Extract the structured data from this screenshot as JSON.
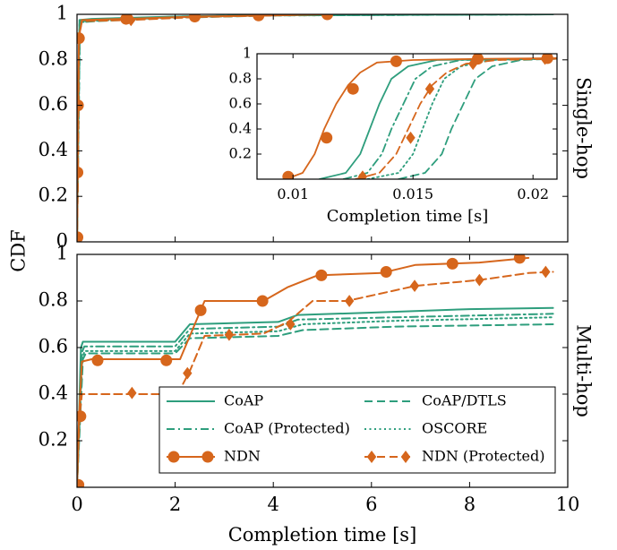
{
  "chart_data": {
    "type": "line",
    "ylabel": "CDF",
    "xlabel": "Completion time [s]",
    "colors": {
      "coap": "#2e9e7d",
      "ndn": "#d6661c"
    },
    "series": [
      {
        "name": "CoAP",
        "color": "#2e9e7d",
        "dash": "solid",
        "marker": "none"
      },
      {
        "name": "CoAP/DTLS",
        "color": "#2e9e7d",
        "dash": "dashed",
        "marker": "none"
      },
      {
        "name": "CoAP (Protected)",
        "color": "#2e9e7d",
        "dash": "dashdot",
        "marker": "none"
      },
      {
        "name": "OSCORE",
        "color": "#2e9e7d",
        "dash": "dotted",
        "marker": "none"
      },
      {
        "name": "NDN",
        "color": "#d6661c",
        "dash": "solid",
        "marker": "circle"
      },
      {
        "name": "NDN (Protected)",
        "color": "#d6661c",
        "dash": "dashed",
        "marker": "diamond"
      }
    ],
    "panels": [
      {
        "label": "Single-hop",
        "xlim": [
          0,
          10
        ],
        "ylim": [
          0,
          1
        ],
        "yticks": [
          "0",
          "0.2",
          "0.4",
          "0.6",
          "0.8",
          "1"
        ],
        "lines": {
          "CoAP": [
            [
              0,
              0
            ],
            [
              0.05,
              0.975
            ],
            [
              0.3,
              0.98
            ],
            [
              2,
              0.99
            ],
            [
              4,
              0.997
            ],
            [
              9.7,
              1
            ]
          ],
          "CoAP/DTLS": [
            [
              0,
              0
            ],
            [
              0.06,
              0.965
            ],
            [
              0.4,
              0.97
            ],
            [
              2,
              0.985
            ],
            [
              4,
              0.995
            ],
            [
              9.7,
              1
            ]
          ],
          "CoAP (Protected)": [
            [
              0,
              0
            ],
            [
              0.05,
              0.97
            ],
            [
              0.3,
              0.975
            ],
            [
              2,
              0.99
            ],
            [
              4,
              0.996
            ],
            [
              9.7,
              1
            ]
          ],
          "OSCORE": [
            [
              0,
              0
            ],
            [
              0.06,
              0.965
            ],
            [
              0.4,
              0.972
            ],
            [
              2,
              0.987
            ],
            [
              4,
              0.995
            ],
            [
              9.7,
              1
            ]
          ],
          "NDN": [
            [
              0,
              0
            ],
            [
              0.01,
              0.3
            ],
            [
              0.02,
              0.6
            ],
            [
              0.04,
              0.9
            ],
            [
              0.1,
              0.975
            ],
            [
              1,
              0.98
            ],
            [
              2.4,
              0.99
            ],
            [
              4,
              0.995
            ],
            [
              5,
              1
            ]
          ],
          "NDN (Protected)": [
            [
              0,
              0
            ],
            [
              0.02,
              0.3
            ],
            [
              0.04,
              0.9
            ],
            [
              0.1,
              0.97
            ],
            [
              1.1,
              0.975
            ],
            [
              2.4,
              0.988
            ],
            [
              5,
              1
            ]
          ]
        },
        "markers": {
          "NDN": [
            [
              0.01,
              0.02
            ],
            [
              0.01,
              0.305
            ],
            [
              0.02,
              0.6
            ],
            [
              0.04,
              0.895
            ],
            [
              1,
              0.98
            ],
            [
              2.4,
              0.99
            ],
            [
              3.7,
              0.995
            ],
            [
              5.1,
              1
            ]
          ],
          "NDN (Protected)": [
            [
              1.1,
              0.975
            ]
          ]
        },
        "inset": {
          "xlabel": "Completion time [s]",
          "xlim": [
            0.0085,
            0.021
          ],
          "ylim": [
            0,
            1
          ],
          "xticks": [
            "0.01",
            "0.015",
            "0.02"
          ],
          "yticks": [
            "0.2",
            "0.4",
            "0.6",
            "0.8",
            "1"
          ],
          "lines": {
            "CoAP": [
              [
                0.0111,
                0
              ],
              [
                0.0122,
                0.05
              ],
              [
                0.0128,
                0.2
              ],
              [
                0.0132,
                0.4
              ],
              [
                0.0136,
                0.6
              ],
              [
                0.0141,
                0.8
              ],
              [
                0.0148,
                0.9
              ],
              [
                0.016,
                0.95
              ],
              [
                0.021,
                0.96
              ]
            ],
            "CoAP (Protected)": [
              [
                0.0121,
                0
              ],
              [
                0.0131,
                0.05
              ],
              [
                0.0137,
                0.2
              ],
              [
                0.0141,
                0.4
              ],
              [
                0.0146,
                0.6
              ],
              [
                0.0151,
                0.8
              ],
              [
                0.0158,
                0.9
              ],
              [
                0.017,
                0.95
              ],
              [
                0.021,
                0.96
              ]
            ],
            "OSCORE": [
              [
                0.0131,
                0
              ],
              [
                0.0144,
                0.05
              ],
              [
                0.015,
                0.2
              ],
              [
                0.0154,
                0.4
              ],
              [
                0.0158,
                0.6
              ],
              [
                0.0163,
                0.8
              ],
              [
                0.017,
                0.9
              ],
              [
                0.0183,
                0.95
              ],
              [
                0.021,
                0.96
              ]
            ],
            "CoAP/DTLS": [
              [
                0.0144,
                0
              ],
              [
                0.0155,
                0.05
              ],
              [
                0.0162,
                0.2
              ],
              [
                0.0166,
                0.4
              ],
              [
                0.0171,
                0.6
              ],
              [
                0.0176,
                0.8
              ],
              [
                0.0183,
                0.9
              ],
              [
                0.0195,
                0.95
              ],
              [
                0.021,
                0.96
              ]
            ],
            "NDN": [
              [
                0.0097,
                0
              ],
              [
                0.0104,
                0.05
              ],
              [
                0.0109,
                0.2
              ],
              [
                0.0113,
                0.4
              ],
              [
                0.0118,
                0.6
              ],
              [
                0.0123,
                0.75
              ],
              [
                0.0128,
                0.85
              ],
              [
                0.0135,
                0.93
              ],
              [
                0.015,
                0.95
              ],
              [
                0.018,
                0.96
              ],
              [
                0.021,
                0.965
              ]
            ],
            "NDN (Protected)": [
              [
                0.0126,
                0
              ],
              [
                0.0136,
                0.05
              ],
              [
                0.0143,
                0.2
              ],
              [
                0.0148,
                0.4
              ],
              [
                0.0153,
                0.6
              ],
              [
                0.0158,
                0.75
              ],
              [
                0.0164,
                0.85
              ],
              [
                0.0172,
                0.92
              ],
              [
                0.0185,
                0.95
              ],
              [
                0.021,
                0.96
              ]
            ]
          },
          "markers": {
            "NDN": [
              [
                0.0098,
                0.02
              ],
              [
                0.0114,
                0.33
              ],
              [
                0.0125,
                0.72
              ],
              [
                0.0143,
                0.94
              ],
              [
                0.0177,
                0.96
              ],
              [
                0.0206,
                0.965
              ]
            ],
            "NDN (Protected)": [
              [
                0.0129,
                0.02
              ],
              [
                0.0149,
                0.33
              ],
              [
                0.0157,
                0.72
              ],
              [
                0.0175,
                0.92
              ],
              [
                0.0205,
                0.96
              ]
            ]
          }
        }
      },
      {
        "label": "Multi-hop",
        "xlim": [
          0,
          10
        ],
        "ylim": [
          0,
          1
        ],
        "xticks": [
          "0",
          "2",
          "4",
          "6",
          "8",
          "10"
        ],
        "yticks": [
          "0.2",
          "0.4",
          "0.6",
          "0.8",
          "1"
        ],
        "lines": {
          "CoAP": [
            [
              0,
              0
            ],
            [
              0.08,
              0.6
            ],
            [
              0.12,
              0.625
            ],
            [
              2,
              0.625
            ],
            [
              2.3,
              0.7
            ],
            [
              4.1,
              0.71
            ],
            [
              4.5,
              0.74
            ],
            [
              6,
              0.75
            ],
            [
              8,
              0.765
            ],
            [
              9.7,
              0.77
            ]
          ],
          "CoAP/DTLS": [
            [
              0,
              0
            ],
            [
              0.12,
              0.55
            ],
            [
              0.18,
              0.575
            ],
            [
              2,
              0.575
            ],
            [
              2.3,
              0.64
            ],
            [
              4.1,
              0.65
            ],
            [
              4.6,
              0.675
            ],
            [
              6.5,
              0.69
            ],
            [
              9.7,
              0.7
            ]
          ],
          "CoAP (Protected)": [
            [
              0,
              0
            ],
            [
              0.1,
              0.58
            ],
            [
              0.15,
              0.605
            ],
            [
              2,
              0.605
            ],
            [
              2.3,
              0.68
            ],
            [
              4.1,
              0.69
            ],
            [
              4.5,
              0.72
            ],
            [
              6.5,
              0.73
            ],
            [
              9.7,
              0.745
            ]
          ],
          "OSCORE": [
            [
              0,
              0
            ],
            [
              0.11,
              0.56
            ],
            [
              0.16,
              0.585
            ],
            [
              2,
              0.585
            ],
            [
              2.3,
              0.66
            ],
            [
              4.1,
              0.67
            ],
            [
              4.6,
              0.7
            ],
            [
              6.5,
              0.715
            ],
            [
              9.7,
              0.73
            ]
          ],
          "NDN": [
            [
              0,
              0
            ],
            [
              0.04,
              0.3
            ],
            [
              0.1,
              0.54
            ],
            [
              0.3,
              0.55
            ],
            [
              2.1,
              0.55
            ],
            [
              2.6,
              0.8
            ],
            [
              3.8,
              0.8
            ],
            [
              4.3,
              0.86
            ],
            [
              4.9,
              0.91
            ],
            [
              6.2,
              0.92
            ],
            [
              6.9,
              0.955
            ],
            [
              8.2,
              0.965
            ],
            [
              9.2,
              0.985
            ]
          ],
          "NDN (Protected)": [
            [
              0,
              0
            ],
            [
              0.05,
              0.3
            ],
            [
              0.1,
              0.4
            ],
            [
              2.05,
              0.4
            ],
            [
              2.3,
              0.5
            ],
            [
              2.6,
              0.65
            ],
            [
              3.8,
              0.66
            ],
            [
              4.3,
              0.71
            ],
            [
              4.8,
              0.8
            ],
            [
              5.5,
              0.8
            ],
            [
              6.9,
              0.865
            ],
            [
              8.2,
              0.89
            ],
            [
              9.2,
              0.92
            ],
            [
              9.7,
              0.925
            ]
          ]
        },
        "markers": {
          "NDN": [
            [
              0.03,
              0.01
            ],
            [
              0.07,
              0.305
            ],
            [
              0.42,
              0.545
            ],
            [
              1.82,
              0.545
            ],
            [
              2.52,
              0.76
            ],
            [
              3.78,
              0.8
            ],
            [
              4.98,
              0.91
            ],
            [
              6.3,
              0.925
            ],
            [
              7.65,
              0.96
            ],
            [
              9.02,
              0.985
            ]
          ],
          "NDN (Protected)": [
            [
              1.12,
              0.405
            ],
            [
              2.25,
              0.49
            ],
            [
              3.1,
              0.655
            ],
            [
              4.35,
              0.7
            ],
            [
              5.55,
              0.8
            ],
            [
              6.88,
              0.865
            ],
            [
              8.2,
              0.89
            ],
            [
              9.55,
              0.925
            ]
          ]
        }
      }
    ]
  }
}
